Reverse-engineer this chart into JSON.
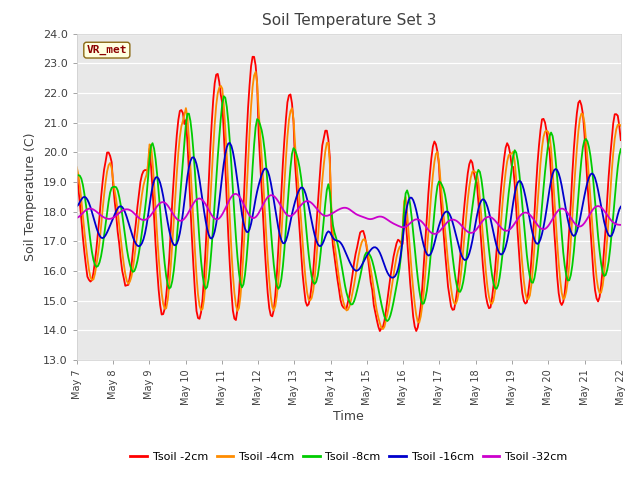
{
  "title": "Soil Temperature Set 3",
  "xlabel": "Time",
  "ylabel": "Soil Temperature (C)",
  "ylim": [
    13.0,
    24.0
  ],
  "yticks": [
    13.0,
    14.0,
    15.0,
    16.0,
    17.0,
    18.0,
    19.0,
    20.0,
    21.0,
    22.0,
    23.0,
    24.0
  ],
  "bg_color": "#e8e8e8",
  "fig_color": "#ffffff",
  "annotation_text": "VR_met",
  "annotation_color": "#8b0000",
  "annotation_bg": "#ffffe0",
  "annotation_border": "#8b6914",
  "series_colors": [
    "#ff0000",
    "#ff8c00",
    "#00cc00",
    "#0000cc",
    "#cc00cc"
  ],
  "series_labels": [
    "Tsoil -2cm",
    "Tsoil -4cm",
    "Tsoil -8cm",
    "Tsoil -16cm",
    "Tsoil -32cm"
  ],
  "x_start": 7.0,
  "x_end": 22.0,
  "xtick_positions": [
    7,
    8,
    9,
    10,
    11,
    12,
    13,
    14,
    15,
    16,
    17,
    18,
    19,
    20,
    21,
    22
  ],
  "xtick_labels": [
    "May 7",
    "May 8",
    "May 9",
    "May 10",
    "May 11",
    "May 12",
    "May 13",
    "May 14",
    "May 15",
    "May 16",
    "May 17",
    "May 18",
    "May 19",
    "May 20",
    "May 21",
    "May 22"
  ]
}
